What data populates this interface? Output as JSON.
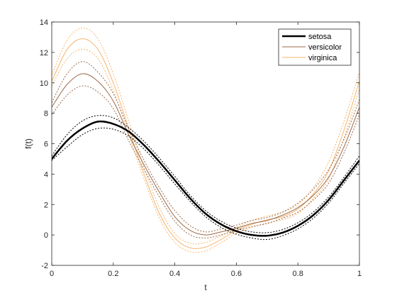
{
  "chart_data": {
    "type": "line",
    "xlabel": "t",
    "ylabel": "f(t)",
    "xlim": [
      0,
      1
    ],
    "ylim": [
      -2,
      14
    ],
    "x_ticks": [
      "0",
      "0.2",
      "0.4",
      "0.6",
      "0.8",
      "1"
    ],
    "y_ticks": [
      "-2",
      "0",
      "2",
      "4",
      "6",
      "8",
      "10",
      "12",
      "14"
    ],
    "grid": false,
    "legend_position": "top-right",
    "x": [
      0,
      0.05,
      0.1,
      0.15,
      0.2,
      0.25,
      0.3,
      0.35,
      0.4,
      0.45,
      0.5,
      0.55,
      0.6,
      0.65,
      0.7,
      0.75,
      0.8,
      0.85,
      0.9,
      0.95,
      1.0
    ],
    "series": [
      {
        "name": "setosa",
        "color": "#000000",
        "line_width": "thick",
        "values": [
          5.0,
          6.2,
          7.0,
          7.45,
          7.3,
          6.8,
          5.9,
          4.8,
          3.6,
          2.4,
          1.4,
          0.7,
          0.25,
          0.0,
          -0.05,
          0.15,
          0.6,
          1.3,
          2.3,
          3.6,
          4.9
        ],
        "upper": [
          5.2,
          6.6,
          7.5,
          7.85,
          7.7,
          7.05,
          6.15,
          5.05,
          3.85,
          2.6,
          1.6,
          0.9,
          0.45,
          0.2,
          0.15,
          0.35,
          0.8,
          1.5,
          2.5,
          3.8,
          5.2
        ],
        "lower": [
          4.9,
          5.8,
          6.6,
          7.0,
          6.95,
          6.5,
          5.65,
          4.55,
          3.35,
          2.2,
          1.2,
          0.5,
          0.05,
          -0.2,
          -0.3,
          -0.05,
          0.4,
          1.1,
          2.1,
          3.4,
          4.7
        ]
      },
      {
        "name": "versicolor",
        "color": "#9a6a4a",
        "line_width": "thin",
        "values": [
          8.4,
          9.9,
          10.6,
          10.1,
          8.8,
          6.6,
          4.6,
          2.8,
          1.2,
          0.3,
          0.0,
          0.2,
          0.45,
          0.75,
          0.95,
          1.3,
          1.8,
          2.6,
          3.8,
          5.8,
          8.4
        ],
        "upper": [
          8.7,
          10.6,
          11.4,
          10.7,
          9.3,
          7.0,
          4.9,
          3.1,
          1.6,
          0.6,
          0.2,
          0.4,
          0.65,
          0.95,
          1.15,
          1.5,
          2.1,
          3.0,
          4.3,
          6.3,
          8.9
        ],
        "lower": [
          7.9,
          9.2,
          9.8,
          9.4,
          8.3,
          6.2,
          4.3,
          2.5,
          0.9,
          0.0,
          -0.2,
          0.0,
          0.3,
          0.55,
          0.75,
          1.1,
          1.5,
          2.3,
          3.4,
          5.4,
          7.9
        ]
      },
      {
        "name": "virginica",
        "color": "#f5b56e",
        "line_width": "thin",
        "values": [
          10.1,
          12.2,
          12.9,
          12.2,
          10.0,
          7.0,
          4.0,
          1.4,
          -0.2,
          -0.85,
          -0.8,
          -0.3,
          0.3,
          0.7,
          1.0,
          1.2,
          1.7,
          2.7,
          4.2,
          6.9,
          10.1
        ],
        "upper": [
          10.5,
          12.8,
          13.6,
          12.9,
          10.6,
          7.5,
          4.4,
          1.8,
          0.1,
          -0.55,
          -0.5,
          -0.05,
          0.5,
          0.95,
          1.25,
          1.5,
          2.0,
          3.1,
          4.8,
          7.5,
          10.7
        ],
        "lower": [
          9.8,
          11.6,
          12.2,
          11.6,
          9.5,
          6.6,
          3.7,
          1.1,
          -0.5,
          -1.1,
          -1.05,
          -0.5,
          0.1,
          0.5,
          0.8,
          1.0,
          1.4,
          2.4,
          3.7,
          6.4,
          9.6
        ]
      }
    ]
  }
}
